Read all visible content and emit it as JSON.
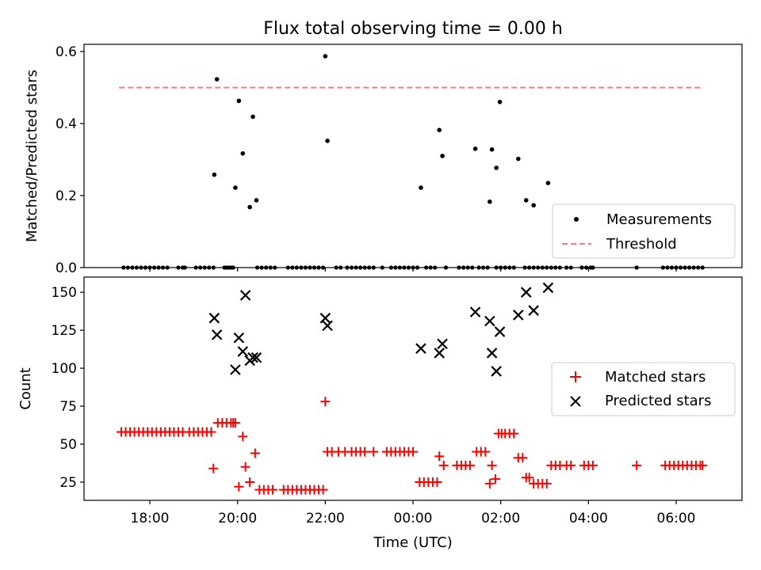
{
  "chart_data": {
    "type": "scatter",
    "title": "Flux total observing time = 0.00 h",
    "xlabel": "Time (UTC)",
    "x_unit": "hours since 00:00 UTC",
    "xlim": [
      -7.5,
      7.5
    ],
    "x_ticks": [
      {
        "value": -6,
        "label": "18:00"
      },
      {
        "value": -4,
        "label": "20:00"
      },
      {
        "value": -2,
        "label": "22:00"
      },
      {
        "value": 0,
        "label": "00:00"
      },
      {
        "value": 2,
        "label": "02:00"
      },
      {
        "value": 4,
        "label": "04:00"
      },
      {
        "value": 6,
        "label": "06:00"
      }
    ],
    "top": {
      "ylabel": "Matched/Predicted stars",
      "ylim": [
        0,
        0.62
      ],
      "y_ticks": [
        {
          "value": 0,
          "label": "0.0"
        },
        {
          "value": 0.2,
          "label": "0.2"
        },
        {
          "value": 0.4,
          "label": "0.4"
        },
        {
          "value": 0.6,
          "label": "0.6"
        }
      ],
      "legend": {
        "placement": "lower-right",
        "measurements_label": "Measurements",
        "threshold_label": "Threshold"
      },
      "threshold": {
        "y": 0.5,
        "x_start": -6.7,
        "x_end": 6.6,
        "color": "#f08080"
      },
      "measurements": {
        "color": "#000000",
        "x": [
          -4.53,
          -4.47,
          -4.05,
          -3.97,
          -3.88,
          -3.72,
          -3.65,
          -3.57,
          -2.0,
          -1.95,
          0.18,
          0.6,
          0.67,
          1.42,
          1.75,
          1.8,
          1.9,
          1.98,
          2.4,
          2.58,
          2.75,
          3.08
        ],
        "y": [
          0.258,
          0.523,
          0.222,
          0.463,
          0.317,
          0.168,
          0.419,
          0.187,
          0.587,
          0.352,
          0.222,
          0.382,
          0.31,
          0.33,
          0.183,
          0.328,
          0.277,
          0.46,
          0.302,
          0.187,
          0.173,
          0.235
        ]
      },
      "zeros": {
        "color": "#000000",
        "x": [
          -6.6,
          -6.5,
          -6.4,
          -6.3,
          -6.2,
          -6.1,
          -6.0,
          -5.9,
          -5.8,
          -5.7,
          -5.6,
          -5.35,
          -5.25,
          -5.2,
          -4.95,
          -4.85,
          -4.75,
          -4.65,
          -4.55,
          -4.3,
          -4.25,
          -4.2,
          -4.15,
          -4.1,
          -3.55,
          -3.45,
          -3.35,
          -3.25,
          -3.15,
          -2.85,
          -2.75,
          -2.65,
          -2.55,
          -2.45,
          -2.35,
          -2.25,
          -2.15,
          -2.05,
          -1.75,
          -1.65,
          -1.5,
          -1.4,
          -1.3,
          -1.2,
          -1.1,
          -1.0,
          -0.9,
          -0.7,
          -0.5,
          -0.4,
          -0.3,
          -0.2,
          -0.1,
          0.0,
          0.1,
          0.3,
          0.4,
          0.5,
          0.75,
          1.05,
          1.15,
          1.25,
          1.35,
          1.5,
          1.6,
          1.7,
          1.9,
          2.0,
          2.1,
          2.2,
          2.3,
          2.55,
          2.65,
          2.75,
          2.85,
          2.95,
          3.05,
          3.15,
          3.25,
          3.35,
          3.5,
          3.6,
          3.85,
          3.95,
          4.05,
          4.1,
          5.1,
          5.7,
          5.8,
          5.9,
          6.0,
          6.1,
          6.2,
          6.3,
          6.4,
          6.5,
          6.6
        ],
        "y_value": 0
      }
    },
    "bottom": {
      "ylabel": "Count",
      "ylim": [
        13,
        160
      ],
      "y_ticks": [
        {
          "value": 25,
          "label": "25"
        },
        {
          "value": 50,
          "label": "50"
        },
        {
          "value": 75,
          "label": "75"
        },
        {
          "value": 100,
          "label": "100"
        },
        {
          "value": 125,
          "label": "125"
        },
        {
          "value": 150,
          "label": "150"
        }
      ],
      "legend": {
        "placement": "right",
        "matched_label": "Matched stars",
        "predicted_label": "Predicted stars"
      },
      "matched_stars": {
        "color": "#ff0000",
        "marker": "+",
        "x": [
          -6.65,
          -6.55,
          -6.45,
          -6.35,
          -6.25,
          -6.15,
          -6.05,
          -5.95,
          -5.85,
          -5.75,
          -5.65,
          -5.55,
          -5.45,
          -5.35,
          -5.25,
          -5.1,
          -5.0,
          -4.9,
          -4.8,
          -4.7,
          -4.6,
          -4.55,
          -4.45,
          -4.35,
          -4.25,
          -4.15,
          -4.1,
          -4.05,
          -3.97,
          -3.88,
          -3.82,
          -3.72,
          -3.6,
          -3.5,
          -3.4,
          -3.3,
          -3.2,
          -2.95,
          -2.85,
          -2.75,
          -2.65,
          -2.55,
          -2.45,
          -2.35,
          -2.25,
          -2.15,
          -2.05,
          -2.0,
          -1.95,
          -1.85,
          -1.7,
          -1.55,
          -1.4,
          -1.3,
          -1.2,
          -1.1,
          -0.9,
          -0.6,
          -0.5,
          -0.4,
          -0.3,
          -0.2,
          -0.1,
          0.0,
          0.15,
          0.25,
          0.35,
          0.45,
          0.55,
          0.6,
          0.7,
          1.0,
          1.1,
          1.2,
          1.3,
          1.45,
          1.55,
          1.65,
          1.75,
          1.8,
          1.88,
          1.95,
          2.02,
          2.1,
          2.2,
          2.3,
          2.4,
          2.5,
          2.58,
          2.65,
          2.75,
          2.85,
          2.95,
          3.05,
          3.15,
          3.25,
          3.35,
          3.5,
          3.6,
          3.9,
          4.0,
          4.1,
          5.1,
          5.75,
          5.85,
          5.95,
          6.05,
          6.15,
          6.25,
          6.35,
          6.45,
          6.55,
          6.6
        ],
        "y": [
          58,
          58,
          58,
          58,
          58,
          58,
          58,
          58,
          58,
          58,
          58,
          58,
          58,
          58,
          58,
          58,
          58,
          58,
          58,
          58,
          58,
          34,
          64,
          64,
          64,
          64,
          64,
          64,
          22,
          55,
          35,
          25,
          44,
          20,
          20,
          20,
          20,
          20,
          20,
          20,
          20,
          20,
          20,
          20,
          20,
          20,
          20,
          78,
          45,
          45,
          45,
          45,
          45,
          45,
          45,
          45,
          45,
          45,
          45,
          45,
          45,
          45,
          45,
          45,
          25,
          25,
          25,
          25,
          25,
          42,
          36,
          36,
          36,
          36,
          36,
          45,
          45,
          45,
          24,
          36,
          27,
          57,
          57,
          57,
          57,
          57,
          41,
          41,
          28,
          28,
          24,
          24,
          24,
          24,
          36,
          36,
          36,
          36,
          36,
          36,
          36,
          36,
          36,
          36,
          36,
          36,
          36,
          36,
          36,
          36,
          36,
          36,
          36
        ]
      },
      "predicted_stars": {
        "color": "#000000",
        "marker": "x",
        "x": [
          -4.53,
          -4.47,
          -4.05,
          -3.97,
          -3.88,
          -3.82,
          -3.72,
          -3.65,
          -3.57,
          -2.0,
          -1.95,
          0.18,
          0.6,
          0.67,
          1.42,
          1.75,
          1.8,
          1.9,
          1.98,
          2.4,
          2.58,
          2.75,
          3.08
        ],
        "y": [
          133,
          122,
          99,
          120,
          111,
          148,
          105,
          107,
          107,
          133,
          128,
          113,
          110,
          116,
          137,
          131,
          110,
          98,
          124,
          135,
          150,
          138,
          153
        ]
      }
    }
  }
}
